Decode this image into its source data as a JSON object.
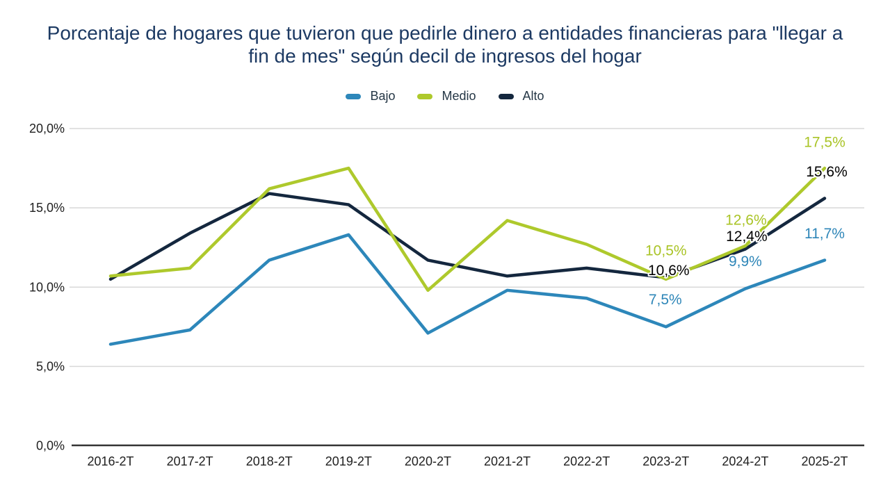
{
  "title": {
    "text": "Porcentaje de hogares que tuvieron que pedirle dinero a entidades financieras para \"llegar a fin de mes\" según decil de ingresos del hogar"
  },
  "legend": {
    "items": [
      {
        "label": "Bajo",
        "color": "#2d87ba"
      },
      {
        "label": "Medio",
        "color": "#aec92c"
      },
      {
        "label": "Alto",
        "color": "#14273e"
      }
    ]
  },
  "chart_data": {
    "type": "line",
    "title": "Porcentaje de hogares que tuvieron que pedirle dinero a entidades financieras para \"llegar a fin de mes\" según decil de ingresos del hogar",
    "categories": [
      "2016-2T",
      "2017-2T",
      "2018-2T",
      "2019-2T",
      "2020-2T",
      "2021-2T",
      "2022-2T",
      "2023-2T",
      "2024-2T",
      "2025-2T"
    ],
    "series": [
      {
        "name": "Bajo",
        "color": "#2d87ba",
        "label_color": "#2e86b8",
        "values": [
          6.4,
          7.3,
          11.7,
          13.3,
          7.1,
          9.8,
          9.3,
          7.5,
          9.9,
          11.7
        ],
        "point_labels": [
          null,
          null,
          null,
          null,
          null,
          null,
          null,
          {
            "text": "7,5%",
            "dx": -1,
            "dy": -39
          },
          {
            "text": "9,9%",
            "dx": 0,
            "dy": -39
          },
          {
            "text": "11,7%",
            "dx": 0,
            "dy": -38
          }
        ]
      },
      {
        "name": "Alto",
        "color": "#14273e",
        "label_color": "#000000",
        "values": [
          10.5,
          13.4,
          15.9,
          15.2,
          11.7,
          10.7,
          11.2,
          10.6,
          12.4,
          15.6
        ],
        "point_labels": [
          null,
          null,
          null,
          null,
          null,
          null,
          null,
          {
            "text": "10,6%",
            "dx": 4,
            "dy": -10
          },
          {
            "text": "12,4%",
            "dx": 2,
            "dy": -18
          },
          {
            "text": "15,6%",
            "dx": 3,
            "dy": -38
          }
        ]
      },
      {
        "name": "Medio",
        "color": "#aec92c",
        "label_color": "#aac427",
        "values": [
          10.7,
          11.2,
          16.2,
          17.5,
          9.8,
          14.2,
          12.7,
          10.5,
          12.6,
          17.5
        ],
        "point_labels": [
          null,
          null,
          null,
          null,
          null,
          null,
          null,
          {
            "text": "10,5%",
            "dx": 0,
            "dy": -41
          },
          {
            "text": "12,6%",
            "dx": 1,
            "dy": -37
          },
          {
            "text": "17,5%",
            "dx": 0,
            "dy": -37
          }
        ]
      }
    ],
    "y_axis": {
      "ticks": [
        {
          "value": 0,
          "label": "0,0%"
        },
        {
          "value": 5,
          "label": "5,0%"
        },
        {
          "value": 10,
          "label": "10,0%"
        },
        {
          "value": 15,
          "label": "15,0%"
        },
        {
          "value": 20,
          "label": "20,0%"
        }
      ],
      "range": [
        0,
        20
      ]
    },
    "x_axis": {
      "labels": [
        "2016-2T",
        "2017-2T",
        "2018-2T",
        "2019-2T",
        "2020-2T",
        "2021-2T",
        "2022-2T",
        "2023-2T",
        "2024-2T",
        "2025-2T"
      ]
    },
    "grid": "horizontal-only",
    "legend_position": "top-center"
  }
}
